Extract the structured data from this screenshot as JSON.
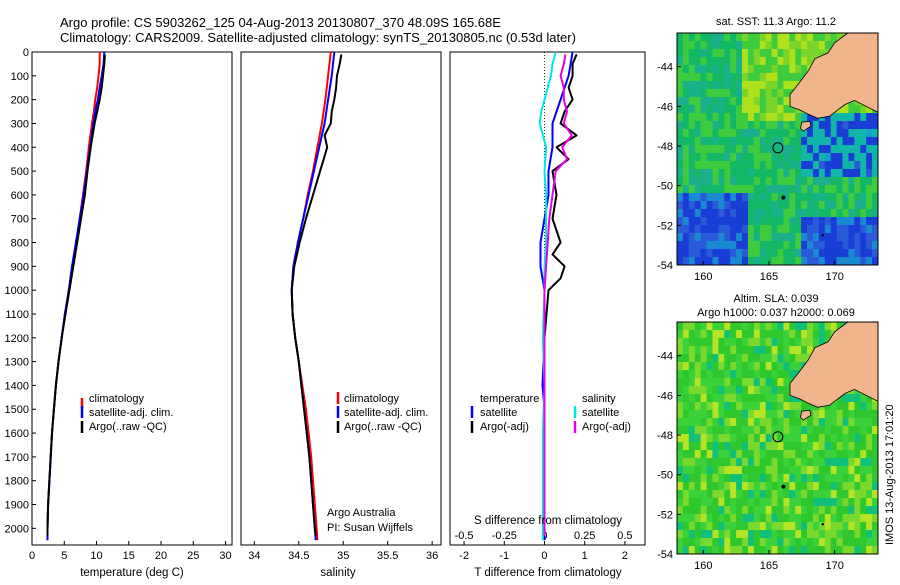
{
  "header": {
    "line1": "Argo profile: CS 5903262_125 04-Aug-2013 20130807_370 48.09S 165.68E",
    "line2": "Climatology: CARS2009. Satellite-adjusted climatology: synTS_20130805.nc (0.53d later)"
  },
  "colors": {
    "climatology": "#ff0000",
    "satellite": "#0000ff",
    "argo": "#000000",
    "salinity_satellite": "#00e5e5",
    "salinity_argo": "#e600e6",
    "land": "#f2b48c"
  },
  "chart_data": [
    {
      "id": "temperature",
      "type": "line",
      "xlabel": "temperature (deg C)",
      "xlim": [
        0,
        31
      ],
      "xticks": [
        "0",
        "5",
        "10",
        "15",
        "20",
        "25",
        "30"
      ],
      "ylim": [
        2070,
        0
      ],
      "yticks": [
        "0",
        "100",
        "200",
        "300",
        "400",
        "500",
        "600",
        "700",
        "800",
        "900",
        "1000",
        "1100",
        "1200",
        "1300",
        "1400",
        "1500",
        "1600",
        "1700",
        "1800",
        "1900",
        "2000"
      ],
      "legend": [
        "climatology",
        "satellite-adj. clim.",
        "Argo(..raw -QC)"
      ],
      "series": [
        {
          "name": "climatology",
          "color": "#ff0000",
          "depth": [
            0,
            50,
            100,
            150,
            200,
            250,
            300,
            400,
            500,
            600,
            700,
            800,
            900,
            1000,
            1100,
            1200,
            1300,
            1400,
            1500,
            1600,
            1700,
            1800,
            1900,
            2000,
            2050
          ],
          "values": [
            10.5,
            10.5,
            10.3,
            10.1,
            9.8,
            9.6,
            9.3,
            8.8,
            8.4,
            7.9,
            7.4,
            6.9,
            6.3,
            5.7,
            5.1,
            4.6,
            4.1,
            3.7,
            3.4,
            3.1,
            2.9,
            2.7,
            2.5,
            2.4,
            2.4
          ]
        },
        {
          "name": "satellite-adj. clim.",
          "color": "#0000ff",
          "depth": [
            0,
            50,
            100,
            150,
            200,
            250,
            300,
            400,
            500,
            600,
            700,
            800,
            900,
            1000,
            1100,
            1200,
            1300,
            1400,
            1500,
            1600,
            1700,
            1800,
            1900,
            2000,
            2050
          ],
          "values": [
            11.2,
            11.1,
            10.8,
            10.5,
            10.2,
            9.8,
            9.5,
            9.0,
            8.5,
            8.0,
            7.4,
            6.8,
            6.2,
            5.7,
            5.1,
            4.6,
            4.1,
            3.7,
            3.4,
            3.1,
            2.9,
            2.7,
            2.5,
            2.4,
            2.4
          ]
        },
        {
          "name": "Argo(..raw -QC)",
          "color": "#000000",
          "depth": [
            10,
            50,
            100,
            150,
            200,
            250,
            300,
            400,
            500,
            600,
            700,
            800,
            900,
            1000,
            1100,
            1200,
            1300,
            1400,
            1500,
            1600,
            1700,
            1800,
            1900,
            2000,
            2030
          ],
          "values": [
            11.3,
            11.2,
            11.0,
            10.8,
            10.5,
            10.1,
            9.7,
            9.1,
            8.6,
            8.2,
            7.6,
            7.0,
            6.4,
            5.8,
            5.2,
            4.6,
            4.1,
            3.7,
            3.4,
            3.1,
            2.9,
            2.7,
            2.5,
            2.4,
            2.4
          ]
        }
      ]
    },
    {
      "id": "salinity",
      "type": "line",
      "xlabel": "salinity",
      "xlim": [
        33.85,
        36.1
      ],
      "xticks": [
        "34",
        "34.5",
        "35",
        "35.5",
        "36"
      ],
      "ylim": [
        2070,
        0
      ],
      "legend": [
        "climatology",
        "satellite-adj. clim.",
        "Argo(..raw -QC)"
      ],
      "annotation": [
        "Argo Australia",
        "PI: Susan Wijffels"
      ],
      "series": [
        {
          "name": "climatology",
          "color": "#ff0000",
          "depth": [
            0,
            100,
            200,
            300,
            400,
            500,
            600,
            700,
            800,
            900,
            1000,
            1100,
            1200,
            1300,
            1400,
            1500,
            1600,
            1700,
            1800,
            1900,
            2000,
            2050
          ],
          "values": [
            34.86,
            34.83,
            34.8,
            34.76,
            34.71,
            34.66,
            34.6,
            34.55,
            34.49,
            34.44,
            34.42,
            34.43,
            34.46,
            34.5,
            34.54,
            34.58,
            34.61,
            34.64,
            34.66,
            34.68,
            34.7,
            34.71
          ]
        },
        {
          "name": "satellite-adj. clim.",
          "color": "#0000ff",
          "depth": [
            0,
            100,
            200,
            300,
            400,
            500,
            600,
            700,
            800,
            900,
            1000,
            1100,
            1200,
            1300,
            1400,
            1500,
            1600,
            1700,
            1800,
            1900,
            2000,
            2050
          ],
          "values": [
            34.9,
            34.87,
            34.83,
            34.79,
            34.73,
            34.67,
            34.61,
            34.55,
            34.49,
            34.44,
            34.42,
            34.43,
            34.46,
            34.5,
            34.53,
            34.56,
            34.59,
            34.62,
            34.64,
            34.66,
            34.68,
            34.69
          ]
        },
        {
          "name": "Argo(..raw -QC)",
          "color": "#000000",
          "depth": [
            10,
            50,
            100,
            150,
            200,
            250,
            300,
            350,
            400,
            450,
            500,
            600,
            700,
            800,
            900,
            1000,
            1100,
            1200,
            1300,
            1400,
            1500,
            1600,
            1700,
            1800,
            1900,
            2000,
            2030
          ],
          "values": [
            34.98,
            34.96,
            34.93,
            34.92,
            34.9,
            34.87,
            34.86,
            34.79,
            34.82,
            34.78,
            34.74,
            34.66,
            34.58,
            34.51,
            34.45,
            34.42,
            34.43,
            34.46,
            34.5,
            34.53,
            34.56,
            34.59,
            34.62,
            34.64,
            34.66,
            34.68,
            34.69
          ]
        }
      ]
    },
    {
      "id": "difference",
      "type": "line",
      "xlabel": "T difference from climatology",
      "xlabel2": "S difference from climatology",
      "xlim": [
        -2.35,
        2.5
      ],
      "xticks": [
        "-2",
        "-1",
        "0",
        "1",
        "2"
      ],
      "xticks2": [
        "-0.5",
        "-0.25",
        "0",
        "0.25",
        "0.5"
      ],
      "ylim": [
        2070,
        0
      ],
      "legend_titles": [
        "temperature",
        "salinity"
      ],
      "legend": [
        "satellite",
        "Argo(-adj)",
        "satellite",
        "Argo(-adj)"
      ],
      "series": [
        {
          "name": "temperature satellite",
          "color": "#0000ff",
          "depth": [
            0,
            100,
            200,
            300,
            400,
            500,
            600,
            700,
            800,
            900,
            1000,
            1200,
            1400,
            1500,
            1600,
            1800,
            2000,
            2050
          ],
          "values": [
            0.7,
            0.6,
            0.4,
            0.2,
            0.2,
            0.1,
            0.1,
            0.0,
            -0.1,
            -0.1,
            0.0,
            0.0,
            -0.05,
            0.0,
            0.0,
            0.0,
            0.0,
            0.0
          ]
        },
        {
          "name": "temperature Argo(-adj)",
          "color": "#000000",
          "depth": [
            10,
            50,
            100,
            150,
            200,
            250,
            300,
            350,
            400,
            450,
            500,
            600,
            700,
            800,
            850,
            900,
            950,
            1000,
            1200,
            1400,
            1600,
            1800,
            2000,
            2030
          ],
          "values": [
            0.8,
            0.7,
            0.7,
            0.6,
            0.7,
            0.5,
            0.4,
            0.8,
            0.3,
            0.6,
            0.2,
            0.3,
            0.2,
            0.4,
            0.2,
            0.5,
            0.4,
            0.1,
            0.0,
            0.0,
            0.0,
            0.0,
            0.0,
            0.0
          ]
        },
        {
          "name": "salinity satellite",
          "color": "#00e5e5",
          "depth": [
            0,
            50,
            100,
            150,
            200,
            250,
            300,
            400,
            500,
            600,
            700,
            800,
            900,
            1000,
            1200,
            1400,
            1600,
            1800,
            2000,
            2050
          ],
          "values": [
            0.07,
            0.05,
            0.04,
            0.02,
            0.0,
            -0.02,
            -0.03,
            0.01,
            0.0,
            0.01,
            0.01,
            0.01,
            0.0,
            0.0,
            -0.01,
            0.0,
            -0.01,
            -0.01,
            -0.01,
            -0.01
          ]
        },
        {
          "name": "salinity Argo(-adj)",
          "color": "#e600e6",
          "depth": [
            10,
            50,
            100,
            150,
            200,
            250,
            300,
            350,
            400,
            450,
            500,
            600,
            700,
            800,
            900,
            1000,
            1200,
            1400,
            1600,
            1800,
            2000,
            2030
          ],
          "values": [
            0.13,
            0.12,
            0.1,
            0.12,
            0.12,
            0.14,
            0.12,
            0.17,
            0.11,
            0.14,
            0.07,
            0.05,
            0.03,
            0.02,
            0.01,
            0.0,
            0.0,
            0.0,
            0.0,
            0.0,
            0.0,
            0.0
          ]
        }
      ]
    },
    {
      "id": "sst-map",
      "type": "heatmap",
      "title": "sat. SST: 11.3 Argo: 11.2",
      "xlim": [
        158,
        173.3
      ],
      "ylim": [
        -54,
        -42.3
      ],
      "xticks": [
        "160",
        "165",
        "170"
      ],
      "yticks": [
        "-44",
        "-46",
        "-48",
        "-50",
        "-52",
        "-54"
      ],
      "float_position": {
        "lon": 165.68,
        "lat": -48.09
      }
    },
    {
      "id": "sla-map",
      "type": "heatmap",
      "title": "Altim. SLA: 0.039",
      "subtitle": "Argo h1000: 0.037 h2000: 0.069",
      "xlim": [
        158,
        173.3
      ],
      "ylim": [
        -54,
        -42.3
      ],
      "xticks": [
        "160",
        "165",
        "170"
      ],
      "yticks": [
        "-44",
        "-46",
        "-48",
        "-50",
        "-52",
        "-54"
      ],
      "float_position": {
        "lon": 165.68,
        "lat": -48.09
      }
    }
  ],
  "credit": "IMOS 13-Aug-2013 17:01:20"
}
